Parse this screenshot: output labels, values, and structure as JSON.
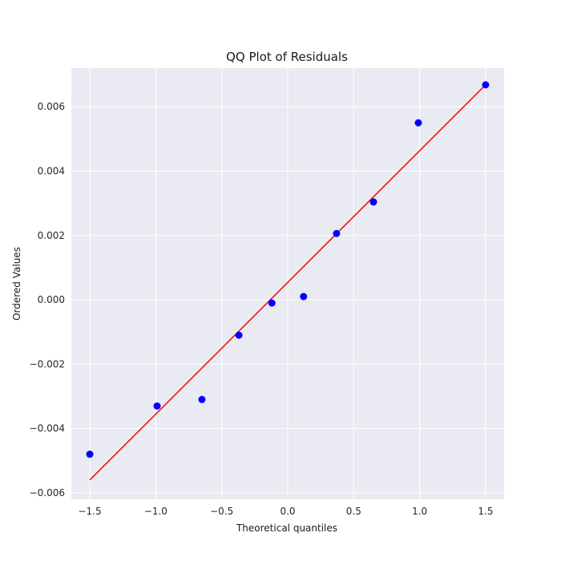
{
  "chart_data": {
    "type": "scatter",
    "title": "QQ Plot of Residuals",
    "xlabel": "Theoretical quantiles",
    "ylabel": "Ordered Values",
    "xlim": [
      -1.64,
      1.64
    ],
    "ylim": [
      -0.0062,
      0.0072
    ],
    "xticks": [
      -1.5,
      -1.0,
      -0.5,
      0.0,
      0.5,
      1.0,
      1.5
    ],
    "xtick_labels": [
      "−1.5",
      "−1.0",
      "−0.5",
      "0.0",
      "0.5",
      "1.0",
      "1.5"
    ],
    "yticks": [
      -0.006,
      -0.004,
      -0.002,
      0.0,
      0.002,
      0.004,
      0.006
    ],
    "ytick_labels": [
      "−0.006",
      "−0.004",
      "−0.002",
      "0.000",
      "0.002",
      "0.004",
      "0.006"
    ],
    "grid": true,
    "points": [
      {
        "x": -1.5,
        "y": -0.0048
      },
      {
        "x": -0.99,
        "y": -0.0033
      },
      {
        "x": -0.65,
        "y": -0.0031
      },
      {
        "x": -0.37,
        "y": -0.0011
      },
      {
        "x": -0.12,
        "y": -0.0001
      },
      {
        "x": 0.12,
        "y": 0.0001
      },
      {
        "x": 0.37,
        "y": 0.00206
      },
      {
        "x": 0.65,
        "y": 0.00304
      },
      {
        "x": 0.99,
        "y": 0.0055
      },
      {
        "x": 1.5,
        "y": 0.00668
      }
    ],
    "fit_line": [
      {
        "x": -1.5,
        "y": -0.0056
      },
      {
        "x": 1.5,
        "y": 0.00668
      }
    ],
    "colors": {
      "background": "#eaeaf2",
      "grid": "#ffffff",
      "points": "#0000ff",
      "line": "#ff0000"
    }
  }
}
